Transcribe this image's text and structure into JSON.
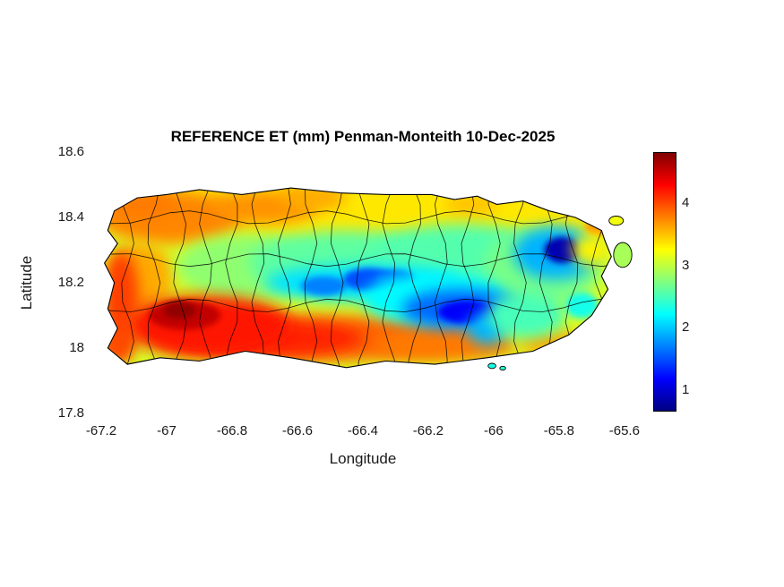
{
  "chart_data": {
    "type": "heatmap",
    "title": "REFERENCE ET (mm) Penman-Monteith 10-Dec-2025",
    "xlabel": "Longitude",
    "ylabel": "Latitude",
    "xlim": [
      -67.2356,
      -65.564
    ],
    "ylim": [
      17.805,
      18.6
    ],
    "grid": false,
    "x_ticks": {
      "values": [
        -67.2,
        -67,
        -66.8,
        -66.6,
        -66.4,
        -66.2,
        -66,
        -65.8,
        -65.6
      ],
      "labels": [
        "-67.2",
        "-67",
        "-66.8",
        "-66.6",
        "-66.4",
        "-66.2",
        "-66",
        "-65.8",
        "-65.6"
      ]
    },
    "y_ticks": {
      "values": [
        18.6,
        18.4,
        18.2,
        18,
        17.8
      ],
      "labels": [
        "18.6",
        "18.4",
        "18.2",
        "18",
        "17.8"
      ]
    },
    "colorbar": {
      "colormap": "jet",
      "clim": [
        0.65,
        4.82
      ],
      "tick_values": [
        1,
        2,
        3,
        4
      ],
      "tick_labels": [
        "1",
        "2",
        "3",
        "4"
      ],
      "position": "right"
    },
    "value_units": "mm",
    "base_value": 3.1,
    "island_outline": [
      [
        -67.16,
        18.42
      ],
      [
        -67.09,
        18.46
      ],
      [
        -67.0,
        18.47
      ],
      [
        -66.9,
        18.485
      ],
      [
        -66.77,
        18.47
      ],
      [
        -66.62,
        18.49
      ],
      [
        -66.47,
        18.475
      ],
      [
        -66.33,
        18.47
      ],
      [
        -66.19,
        18.47
      ],
      [
        -66.12,
        18.455
      ],
      [
        -66.05,
        18.465
      ],
      [
        -65.99,
        18.44
      ],
      [
        -65.91,
        18.45
      ],
      [
        -65.83,
        18.42
      ],
      [
        -65.75,
        18.4
      ],
      [
        -65.67,
        18.36
      ],
      [
        -65.66,
        18.33
      ],
      [
        -65.64,
        18.28
      ],
      [
        -65.67,
        18.22
      ],
      [
        -65.65,
        18.18
      ],
      [
        -65.7,
        18.1
      ],
      [
        -65.77,
        18.04
      ],
      [
        -65.88,
        17.99
      ],
      [
        -66.02,
        17.97
      ],
      [
        -66.18,
        17.95
      ],
      [
        -66.33,
        17.96
      ],
      [
        -66.45,
        17.94
      ],
      [
        -66.62,
        17.97
      ],
      [
        -66.76,
        17.99
      ],
      [
        -66.9,
        17.96
      ],
      [
        -67.02,
        17.97
      ],
      [
        -67.12,
        17.95
      ],
      [
        -67.18,
        18.0
      ],
      [
        -67.15,
        18.06
      ],
      [
        -67.18,
        18.12
      ],
      [
        -67.16,
        18.2
      ],
      [
        -67.19,
        18.26
      ],
      [
        -67.15,
        18.32
      ],
      [
        -67.18,
        18.36
      ]
    ],
    "heat_regions": [
      {
        "lon": -66.4,
        "lat": 18.42,
        "rx": 0.8,
        "ry": 0.11,
        "v": 3.35,
        "b": 8
      },
      {
        "lon": -66.99,
        "lat": 18.4,
        "rx": 0.22,
        "ry": 0.08,
        "v": 3.75,
        "b": 8
      },
      {
        "lon": -67.07,
        "lat": 18.44,
        "rx": 0.1,
        "ry": 0.04,
        "v": 3.8,
        "b": 8
      },
      {
        "lon": -66.7,
        "lat": 18.43,
        "rx": 0.16,
        "ry": 0.05,
        "v": 3.7,
        "b": 8
      },
      {
        "lon": -66.55,
        "lat": 18.46,
        "rx": 0.1,
        "ry": 0.04,
        "v": 3.6,
        "b": 8
      },
      {
        "lon": -66.07,
        "lat": 18.44,
        "rx": 0.08,
        "ry": 0.035,
        "v": 3.5,
        "b": 8
      },
      {
        "lon": -67.08,
        "lat": 18.22,
        "rx": 0.1,
        "ry": 0.1,
        "v": 3.6,
        "b": 8
      },
      {
        "lon": -66.75,
        "lat": 18.25,
        "rx": 0.22,
        "ry": 0.1,
        "v": 2.8,
        "b": 8
      },
      {
        "lon": -66.45,
        "lat": 18.26,
        "rx": 0.3,
        "ry": 0.1,
        "v": 2.6,
        "b": 8
      },
      {
        "lon": -66.1,
        "lat": 18.26,
        "rx": 0.3,
        "ry": 0.12,
        "v": 2.55,
        "b": 8
      },
      {
        "lon": -65.85,
        "lat": 18.25,
        "rx": 0.18,
        "ry": 0.12,
        "v": 2.7,
        "b": 8
      },
      {
        "lon": -66.55,
        "lat": 18.03,
        "rx": 0.5,
        "ry": 0.07,
        "v": 3.9,
        "b": 8
      },
      {
        "lon": -66.7,
        "lat": 18.03,
        "rx": 0.3,
        "ry": 0.055,
        "v": 4.15,
        "b": 8
      },
      {
        "lon": -66.88,
        "lat": 18.07,
        "rx": 0.26,
        "ry": 0.09,
        "v": 4.2,
        "b": 8
      },
      {
        "lon": -66.945,
        "lat": 18.1,
        "rx": 0.11,
        "ry": 0.045,
        "v": 4.55,
        "b": 4
      },
      {
        "lon": -66.96,
        "lat": 18.115,
        "rx": 0.05,
        "ry": 0.025,
        "v": 4.75,
        "b": 4
      },
      {
        "lon": -67.14,
        "lat": 18.14,
        "rx": 0.055,
        "ry": 0.16,
        "v": 4.05,
        "b": 8
      },
      {
        "lon": -67.15,
        "lat": 18.01,
        "rx": 0.05,
        "ry": 0.06,
        "v": 4.0,
        "b": 8
      },
      {
        "lon": -66.15,
        "lat": 18.01,
        "rx": 0.22,
        "ry": 0.05,
        "v": 3.8,
        "b": 8
      },
      {
        "lon": -65.82,
        "lat": 18.015,
        "rx": 0.1,
        "ry": 0.04,
        "v": 3.6,
        "b": 8
      },
      {
        "lon": -66.4,
        "lat": 18.2,
        "rx": 0.3,
        "ry": 0.055,
        "v": 2.1,
        "b": 8
      },
      {
        "lon": -66.52,
        "lat": 18.19,
        "rx": 0.07,
        "ry": 0.03,
        "v": 1.7,
        "b": 4
      },
      {
        "lon": -66.38,
        "lat": 18.21,
        "rx": 0.08,
        "ry": 0.035,
        "v": 1.5,
        "b": 4
      },
      {
        "lon": -66.3,
        "lat": 18.21,
        "rx": 0.06,
        "ry": 0.03,
        "v": 1.6,
        "b": 4
      },
      {
        "lon": -66.18,
        "lat": 18.15,
        "rx": 0.22,
        "ry": 0.08,
        "v": 2.2,
        "b": 8
      },
      {
        "lon": -66.1,
        "lat": 18.12,
        "rx": 0.18,
        "ry": 0.06,
        "v": 1.6,
        "b": 8
      },
      {
        "lon": -66.08,
        "lat": 18.11,
        "rx": 0.09,
        "ry": 0.035,
        "v": 1.15,
        "b": 4
      },
      {
        "lon": -66.02,
        "lat": 18.06,
        "rx": 0.06,
        "ry": 0.05,
        "v": 1.9,
        "b": 8
      },
      {
        "lon": -65.9,
        "lat": 18.1,
        "rx": 0.12,
        "ry": 0.07,
        "v": 2.5,
        "b": 8
      },
      {
        "lon": -65.73,
        "lat": 18.13,
        "rx": 0.05,
        "ry": 0.04,
        "v": 2.3,
        "b": 4
      },
      {
        "lon": -65.81,
        "lat": 18.29,
        "rx": 0.13,
        "ry": 0.08,
        "v": 1.9,
        "b": 8
      },
      {
        "lon": -65.79,
        "lat": 18.3,
        "rx": 0.055,
        "ry": 0.04,
        "v": 0.85,
        "b": 4
      },
      {
        "lon": -65.67,
        "lat": 18.37,
        "rx": 0.05,
        "ry": 0.03,
        "v": 3.7,
        "b": 4
      },
      {
        "lon": -65.7,
        "lat": 18.3,
        "rx": 0.06,
        "ry": 0.05,
        "v": 3.3,
        "b": 8
      }
    ],
    "islets": [
      {
        "lon": -65.625,
        "lat": 18.39,
        "rx": 0.022,
        "ry": 0.014,
        "v": 3.2
      },
      {
        "lon": -65.605,
        "lat": 18.285,
        "rx": 0.028,
        "ry": 0.038,
        "v": 2.9
      },
      {
        "lon": -66.005,
        "lat": 17.945,
        "rx": 0.012,
        "ry": 0.008,
        "v": 2.3
      },
      {
        "lon": -65.972,
        "lat": 17.938,
        "rx": 0.009,
        "ry": 0.006,
        "v": 2.4
      }
    ],
    "boundary_lines": {
      "vertical_lons": [
        -67.12,
        -67.04,
        -66.96,
        -66.88,
        -66.8,
        -66.72,
        -66.64,
        -66.56,
        -66.48,
        -66.4,
        -66.32,
        -66.24,
        -66.16,
        -66.08,
        -66.0,
        -65.92,
        -65.84,
        -65.76,
        -65.68
      ],
      "horizontal_lats": [
        18.13,
        18.27,
        18.4
      ],
      "wobble": 0.02
    }
  }
}
